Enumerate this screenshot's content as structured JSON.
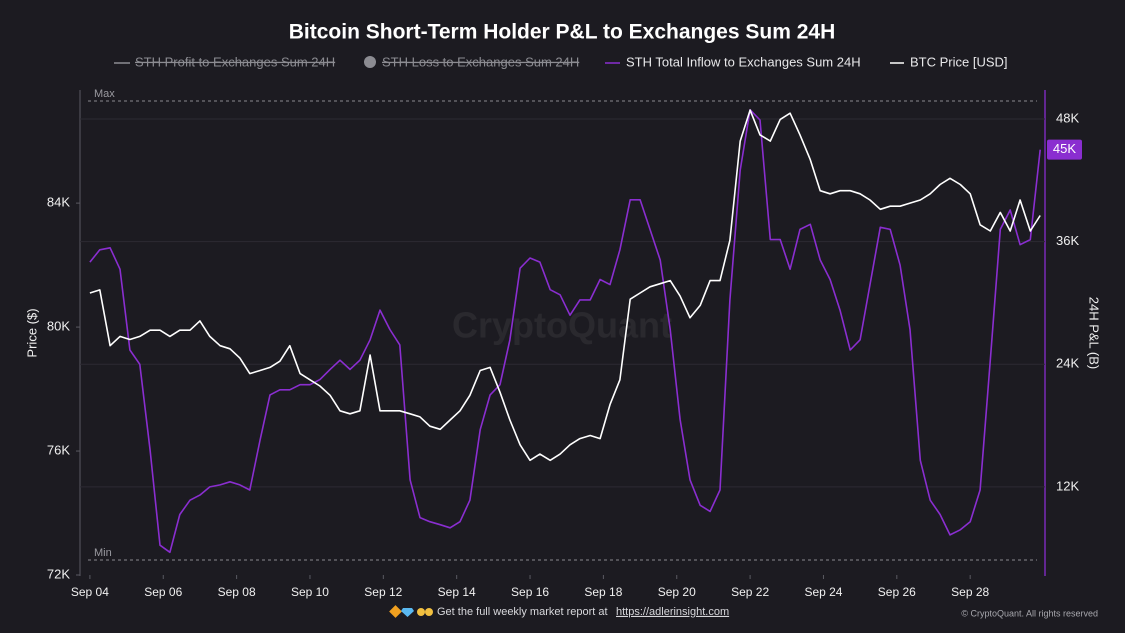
{
  "chart_data": {
    "type": "line",
    "title": "Bitcoin Short-Term Holder P&L to Exchanges Sum 24H",
    "hidden_series": [
      {
        "name": "STH Profit to Exchanges Sum 24H",
        "marker": "line",
        "color": "#8c8c92"
      },
      {
        "name": "STH Loss to Exchanges Sum 24H",
        "marker": "circle",
        "color": "#8c8c92"
      }
    ],
    "x": [
      4.0,
      4.27,
      4.55,
      4.82,
      5.09,
      5.36,
      5.64,
      5.91,
      6.18,
      6.45,
      6.73,
      7.0,
      7.27,
      7.55,
      7.82,
      8.09,
      8.36,
      8.64,
      8.91,
      9.18,
      9.45,
      9.73,
      10.0,
      10.27,
      10.55,
      10.82,
      11.09,
      11.36,
      11.64,
      11.91,
      12.18,
      12.45,
      12.73,
      13.0,
      13.27,
      13.55,
      13.82,
      14.09,
      14.36,
      14.64,
      14.91,
      15.18,
      15.45,
      15.73,
      16.0,
      16.27,
      16.55,
      16.82,
      17.09,
      17.36,
      17.64,
      17.91,
      18.18,
      18.45,
      18.73,
      19.0,
      19.27,
      19.55,
      19.82,
      20.09,
      20.36,
      20.64,
      20.91,
      21.18,
      21.45,
      21.73,
      22.0,
      22.27,
      22.55,
      22.82,
      23.09,
      23.36,
      23.64,
      23.91,
      24.18,
      24.45,
      24.73,
      25.0,
      25.27,
      25.55,
      25.82,
      26.09,
      26.36,
      26.64,
      26.91,
      27.18,
      27.45,
      27.73,
      28.0,
      28.27,
      28.55,
      28.82,
      29.09,
      29.36,
      29.64,
      29.91
    ],
    "series": [
      {
        "name": "STH Total Inflow to Exchanges Sum 24H",
        "color": "#8a2ed0",
        "axis": "y2",
        "values": [
          34000,
          35200,
          35400,
          33300,
          25400,
          24000,
          15600,
          6300,
          5600,
          9300,
          10700,
          11200,
          12000,
          12200,
          12500,
          12200,
          11700,
          16600,
          21000,
          21500,
          21500,
          22000,
          22000,
          22500,
          23500,
          24400,
          23500,
          24400,
          26400,
          29300,
          27400,
          25900,
          12700,
          9000,
          8600,
          8300,
          8000,
          8600,
          10700,
          17600,
          21000,
          22000,
          26400,
          33400,
          34400,
          34000,
          31300,
          30800,
          28800,
          30300,
          30300,
          32300,
          31800,
          35200,
          40100,
          40100,
          37200,
          34200,
          27400,
          18600,
          12700,
          10200,
          9600,
          11700,
          30300,
          43000,
          48900,
          47900,
          36200,
          36200,
          33300,
          37200,
          37700,
          34200,
          32300,
          29300,
          25400,
          26400,
          31800,
          37400,
          37200,
          33700,
          27400,
          14600,
          10700,
          9300,
          7300,
          7800,
          8600,
          11700,
          24400,
          37200,
          39100,
          35700,
          36200,
          45000
        ]
      },
      {
        "name": "BTC Price [USD]",
        "color": "#ffffff",
        "values": [
          81100,
          81200,
          79400,
          79700,
          79600,
          79700,
          79900,
          79900,
          79700,
          79900,
          79900,
          80200,
          79700,
          79400,
          79300,
          79000,
          78500,
          78600,
          78700,
          78900,
          79400,
          78500,
          78300,
          78100,
          77800,
          77300,
          77200,
          77300,
          79100,
          77300,
          77300,
          77300,
          77200,
          77100,
          76800,
          76700,
          77000,
          77300,
          77800,
          78600,
          78700,
          77900,
          77000,
          76200,
          75700,
          75900,
          75700,
          75900,
          76200,
          76400,
          76500,
          76400,
          77500,
          78300,
          80900,
          81100,
          81300,
          81400,
          81500,
          81000,
          80300,
          80700,
          81500,
          81500,
          82800,
          86000,
          87000,
          86200,
          86000,
          86700,
          86900,
          86200,
          85400,
          84400,
          84300,
          84400,
          84400,
          84300,
          84100,
          83800,
          83900,
          83900,
          84000,
          84100,
          84300,
          84600,
          84800,
          84600,
          84300,
          83300,
          83100,
          83700,
          83100,
          84100,
          83100,
          83600
        ]
      }
    ],
    "last_value_label": {
      "value": 45000,
      "label": "45K"
    },
    "reference_lines": [
      {
        "label": "Max",
        "value": 49760
      },
      {
        "label": "Min",
        "value": 4850
      }
    ],
    "xlim": [
      3.73,
      30.04
    ],
    "xticks": [
      {
        "value": 4,
        "label": "Sep 04"
      },
      {
        "value": 6,
        "label": "Sep 06"
      },
      {
        "value": 8,
        "label": "Sep 08"
      },
      {
        "value": 10,
        "label": "Sep 10"
      },
      {
        "value": 12,
        "label": "Sep 12"
      },
      {
        "value": 14,
        "label": "Sep 14"
      },
      {
        "value": 16,
        "label": "Sep 16"
      },
      {
        "value": 18,
        "label": "Sep 18"
      },
      {
        "value": 20,
        "label": "Sep 20"
      },
      {
        "value": 22,
        "label": "Sep 22"
      },
      {
        "value": 24,
        "label": "Sep 24"
      },
      {
        "value": 26,
        "label": "Sep 26"
      },
      {
        "value": 28,
        "label": "Sep 28"
      }
    ],
    "ylim": [
      72000,
      87650
    ],
    "yticks": [
      {
        "value": 72000,
        "label": "72K"
      },
      {
        "value": 76000,
        "label": "76K"
      },
      {
        "value": 80000,
        "label": "80K"
      },
      {
        "value": 84000,
        "label": "84K"
      }
    ],
    "y2lim": [
      3380,
      50840
    ],
    "y2ticks": [
      {
        "value": 12000,
        "label": "12K"
      },
      {
        "value": 24000,
        "label": "24K"
      },
      {
        "value": 36000,
        "label": "36K"
      },
      {
        "value": 48000,
        "label": "48K"
      }
    ],
    "ylabel": "Price ($)",
    "y2label": "24H P&L (B)",
    "grid": true,
    "watermark": "CryptoQuant",
    "footer_text": "Get the full weekly market report at",
    "footer_link": "https://adlerinsight.com",
    "copyright": "© CryptoQuant. All rights reserved"
  }
}
